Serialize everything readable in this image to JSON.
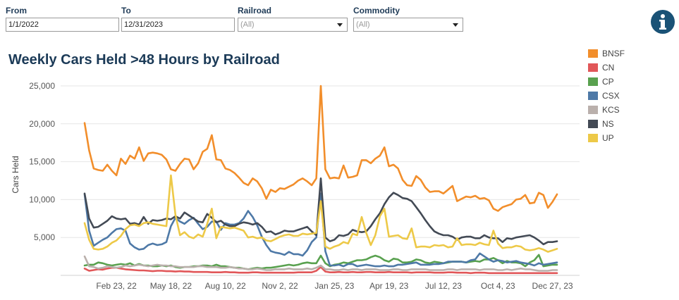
{
  "filters": {
    "from": {
      "label": "From",
      "value": "1/1/2022"
    },
    "to": {
      "label": "To",
      "value": "12/31/2023"
    },
    "railroad": {
      "label": "Railroad",
      "value": "(All)"
    },
    "commodity": {
      "label": "Commodity",
      "value": "(All)"
    }
  },
  "info_icon": "info-icon",
  "colors": {
    "BNSF": "#f28e2b",
    "CN": "#e15759",
    "CP": "#59a14f",
    "CSX": "#4e79a7",
    "KCS": "#bab0ac",
    "NS": "#434a55",
    "UP": "#edc948"
  },
  "chart_data": {
    "type": "line",
    "title": "Weekly Cars Held >48 Hours by Railroad",
    "xlabel": "",
    "ylabel": "Cars Held",
    "ylim": [
      0,
      26000
    ],
    "y_ticks": [
      5000,
      10000,
      15000,
      20000,
      25000
    ],
    "y_tick_labels": [
      "5,000",
      "10,000",
      "15,000",
      "20,000",
      "25,000"
    ],
    "x_ticks": [
      7,
      19,
      31,
      43,
      55,
      67,
      79,
      91,
      103
    ],
    "x_tick_labels": [
      "Feb 23, 22",
      "May 18, 22",
      "Aug 10, 22",
      "Nov 2, 22",
      "Jan 25, 23",
      "Apr 19, 23",
      "Jul 12, 23",
      "Oct 4, 23",
      "Dec 27, 23"
    ],
    "x_range": [
      0,
      104
    ],
    "grid": true,
    "legend_position": "right",
    "series": [
      {
        "name": "BNSF",
        "values": [
          20100,
          16500,
          14100,
          13900,
          13800,
          14600,
          13800,
          13200,
          15400,
          14700,
          15800,
          15400,
          16900,
          15100,
          16100,
          16200,
          16100,
          15900,
          15300,
          14000,
          13800,
          14700,
          15400,
          15300,
          14000,
          14800,
          16300,
          16700,
          18500,
          15300,
          15200,
          14100,
          13900,
          13500,
          12900,
          12200,
          11900,
          12800,
          12400,
          11500,
          10100,
          11300,
          11000,
          11500,
          11400,
          11700,
          12000,
          12500,
          12800,
          12400,
          11900,
          12800,
          25000,
          14000,
          12800,
          12900,
          12800,
          14500,
          12900,
          13000,
          13200,
          15200,
          15200,
          14800,
          15400,
          15800,
          16900,
          14400,
          14600,
          14100,
          12600,
          11900,
          11800,
          13100,
          12600,
          11600,
          11000,
          11100,
          11100,
          10800,
          11300,
          11800,
          9800,
          10100,
          10400,
          10300,
          10500,
          10100,
          10200,
          9900,
          8800,
          8500,
          9000,
          9200,
          9400,
          10000,
          10100,
          10600,
          9500,
          9600,
          10900,
          10600,
          8900,
          9700,
          10700
        ]
      },
      {
        "name": "CN",
        "values": [
          900,
          600,
          700,
          800,
          750,
          900,
          1000,
          1000,
          900,
          800,
          750,
          700,
          650,
          650,
          600,
          550,
          600,
          600,
          550,
          550,
          500,
          550,
          500,
          500,
          450,
          450,
          450,
          450,
          400,
          400,
          400,
          450,
          400,
          400,
          350,
          350,
          350,
          400,
          400,
          350,
          350,
          350,
          350,
          350,
          350,
          350,
          350,
          400,
          400,
          400,
          400,
          600,
          1100,
          500,
          400,
          400,
          450,
          400,
          400,
          450,
          400,
          400,
          450,
          450,
          400,
          400,
          400,
          450,
          400,
          400,
          400,
          400,
          350,
          400,
          400,
          400,
          400,
          350,
          350,
          350,
          400,
          400,
          350,
          350,
          350,
          300,
          350,
          350,
          350,
          300,
          300,
          300,
          300,
          300,
          300,
          300,
          300,
          300,
          300,
          300,
          300,
          300,
          300,
          300,
          300
        ]
      },
      {
        "name": "CP",
        "values": [
          1300,
          1400,
          1400,
          1700,
          1600,
          1400,
          1300,
          1400,
          1500,
          1400,
          1600,
          1300,
          1500,
          1300,
          1300,
          1200,
          1200,
          1300,
          1200,
          1300,
          1100,
          1000,
          1100,
          1100,
          1200,
          1200,
          1300,
          1300,
          1200,
          1400,
          1200,
          1200,
          1100,
          1000,
          1000,
          900,
          800,
          900,
          1000,
          900,
          1000,
          1000,
          1100,
          1200,
          1300,
          1400,
          1300,
          1400,
          1600,
          1700,
          1600,
          1600,
          2600,
          1600,
          1200,
          1400,
          1500,
          1700,
          1600,
          1800,
          2000,
          2000,
          2100,
          2400,
          2600,
          2400,
          2000,
          1800,
          2200,
          2100,
          1700,
          1700,
          1800,
          2100,
          2000,
          1700,
          1600,
          1800,
          1700,
          1600,
          1700,
          1800,
          1800,
          1800,
          1700,
          1800,
          1900,
          1800,
          2100,
          2100,
          2300,
          2000,
          1600,
          1900,
          1700,
          1700,
          1600,
          1200,
          1700,
          2000,
          2700,
          1200,
          1300,
          1400,
          1400
        ]
      },
      {
        "name": "CSX",
        "values": [
          10700,
          5900,
          3900,
          4300,
          4700,
          5000,
          5600,
          6100,
          6200,
          5900,
          4200,
          3700,
          3400,
          3500,
          4000,
          4200,
          4000,
          4100,
          4400,
          6500,
          7600,
          7100,
          6800,
          7300,
          7600,
          6800,
          6100,
          6400,
          7100,
          7100,
          6000,
          6900,
          6700,
          6700,
          6900,
          7500,
          8500,
          7700,
          6600,
          5100,
          4000,
          3200,
          3000,
          2900,
          2700,
          3100,
          2800,
          2800,
          2600,
          3300,
          4400,
          5000,
          10800,
          3200,
          1300,
          1300,
          1400,
          1200,
          1500,
          1500,
          1200,
          1300,
          1400,
          1300,
          1200,
          1200,
          1300,
          1200,
          1200,
          1400,
          1400,
          1500,
          1600,
          1700,
          1400,
          1400,
          1400,
          1500,
          1500,
          1600,
          1800,
          1800,
          1800,
          1800,
          1700,
          2000,
          2100,
          2900,
          2500,
          2100,
          1800,
          2000,
          1900,
          1700,
          1800,
          1900,
          1700,
          1600,
          1500,
          1300,
          1600,
          1400,
          1500,
          1600,
          1700
        ]
      },
      {
        "name": "KCS",
        "values": [
          2500,
          1200,
          1100,
          900,
          1000,
          1200,
          1100,
          1000,
          1100,
          1300,
          1200,
          1300,
          1400,
          1300,
          1200,
          1300,
          1400,
          1300,
          1300,
          1200,
          1200,
          1100,
          1100,
          1100,
          1100,
          1200,
          1200,
          1100,
          1100,
          1100,
          1000,
          1000,
          1100,
          1000,
          900,
          900,
          800,
          800,
          900,
          800,
          700,
          700,
          800,
          800,
          800,
          900,
          800,
          800,
          800,
          900,
          800,
          1000,
          1300,
          800,
          800,
          700,
          700,
          800,
          700,
          800,
          800,
          700,
          800,
          800,
          800,
          700,
          700,
          700,
          800,
          800,
          700,
          700,
          800,
          800,
          800,
          800,
          700,
          700,
          700,
          700,
          800,
          800,
          700,
          800,
          800,
          800,
          800,
          700,
          800,
          800,
          800,
          700,
          700,
          800,
          700,
          800,
          900,
          800,
          800,
          700,
          600,
          600,
          600,
          700,
          700
        ]
      },
      {
        "name": "NS",
        "values": [
          10800,
          7500,
          6300,
          6400,
          6800,
          7200,
          7800,
          7500,
          7400,
          7500,
          6800,
          6900,
          6700,
          7700,
          6800,
          7300,
          7200,
          7300,
          7500,
          7400,
          7800,
          7500,
          8300,
          7900,
          7500,
          7100,
          7000,
          8100,
          7600,
          7000,
          7200,
          6700,
          6500,
          6500,
          6800,
          7000,
          6900,
          6700,
          6900,
          6400,
          5700,
          5800,
          5400,
          5600,
          5900,
          5800,
          5800,
          6000,
          6200,
          6400,
          5800,
          5300,
          12800,
          5000,
          4500,
          4700,
          5300,
          5200,
          5400,
          6000,
          5800,
          5700,
          5800,
          6500,
          7400,
          8200,
          9400,
          10300,
          10900,
          10600,
          10200,
          10100,
          9800,
          9000,
          8200,
          7300,
          6500,
          5800,
          5500,
          5300,
          5300,
          5100,
          4700,
          5000,
          5100,
          5100,
          4900,
          4900,
          5300,
          5000,
          4900,
          4900,
          4400,
          4900,
          4800,
          5000,
          5100,
          5200,
          5300,
          5000,
          4600,
          4100,
          4400,
          4400,
          4500
        ]
      },
      {
        "name": "UP",
        "values": [
          6900,
          4700,
          3500,
          3400,
          3500,
          3800,
          4300,
          4600,
          5200,
          6100,
          6600,
          6700,
          6500,
          6900,
          7000,
          6800,
          6700,
          6600,
          6500,
          13200,
          8000,
          5300,
          5700,
          5100,
          4900,
          5400,
          5100,
          6800,
          8800,
          4900,
          6400,
          6300,
          6200,
          6300,
          6100,
          5900,
          5000,
          5100,
          4900,
          5000,
          4600,
          4500,
          4800,
          5100,
          5300,
          5400,
          5200,
          5200,
          5500,
          5400,
          5500,
          5600,
          9800,
          3800,
          3500,
          3800,
          4000,
          4400,
          4200,
          5500,
          5300,
          7700,
          5600,
          4000,
          5300,
          7800,
          8800,
          5100,
          5200,
          5300,
          4900,
          4800,
          6200,
          3700,
          3800,
          3800,
          3700,
          4000,
          3900,
          4000,
          3700,
          3800,
          4900,
          4000,
          4100,
          4100,
          4000,
          4300,
          4100,
          4000,
          5900,
          4200,
          3600,
          3700,
          3700,
          3900,
          3800,
          3400,
          3300,
          3400,
          3600,
          3400,
          3100,
          3300,
          3500
        ]
      }
    ]
  }
}
